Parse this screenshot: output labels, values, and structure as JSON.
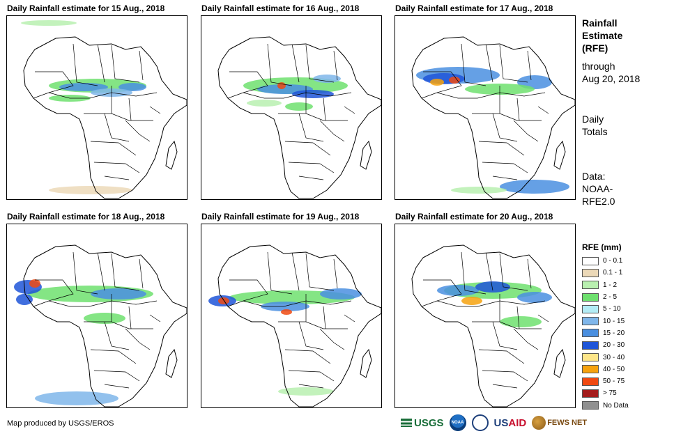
{
  "panels": [
    {
      "title": "Daily Rainfall estimate for 15 Aug., 2018"
    },
    {
      "title": "Daily Rainfall estimate for 16 Aug., 2018"
    },
    {
      "title": "Daily Rainfall estimate for 17 Aug., 2018"
    },
    {
      "title": "Daily Rainfall estimate for 18 Aug., 2018"
    },
    {
      "title": "Daily Rainfall estimate for 19 Aug., 2018"
    },
    {
      "title": "Daily Rainfall estimate for 20 Aug., 2018"
    }
  ],
  "sidebar": {
    "title_lines": [
      "Rainfall",
      "Estimate",
      "(RFE)"
    ],
    "through_lines": [
      "through",
      "Aug 20, 2018"
    ],
    "totals_lines": [
      "Daily",
      "Totals"
    ],
    "data_lines": [
      "Data:",
      "NOAA-",
      "RFE2.0"
    ]
  },
  "legend": {
    "title": "RFE (mm)",
    "items": [
      {
        "label": "0 - 0.1",
        "color": "#ffffff"
      },
      {
        "label": "0.1 - 1",
        "color": "#ecd9b8"
      },
      {
        "label": "1 - 2",
        "color": "#b9f0b0"
      },
      {
        "label": "2 - 5",
        "color": "#6ee06e"
      },
      {
        "label": "5 - 10",
        "color": "#b3ecf5"
      },
      {
        "label": "10 - 15",
        "color": "#7fb6ea"
      },
      {
        "label": "15 - 20",
        "color": "#4a8fe0"
      },
      {
        "label": "20 - 30",
        "color": "#1f55d8"
      },
      {
        "label": "30 - 40",
        "color": "#fde68a"
      },
      {
        "label": "40 - 50",
        "color": "#f6a20e"
      },
      {
        "label": "50 - 75",
        "color": "#f04a12"
      },
      {
        "label": "> 75",
        "color": "#a41c1c"
      },
      {
        "label": "No Data",
        "color": "#909090"
      }
    ]
  },
  "credit": "Map produced by USGS/EROS",
  "logos": {
    "usgs": "USGS",
    "noaa": "NOAA",
    "usaid_a": "US",
    "usaid_b": "AID",
    "fews": "FEWS NET"
  }
}
